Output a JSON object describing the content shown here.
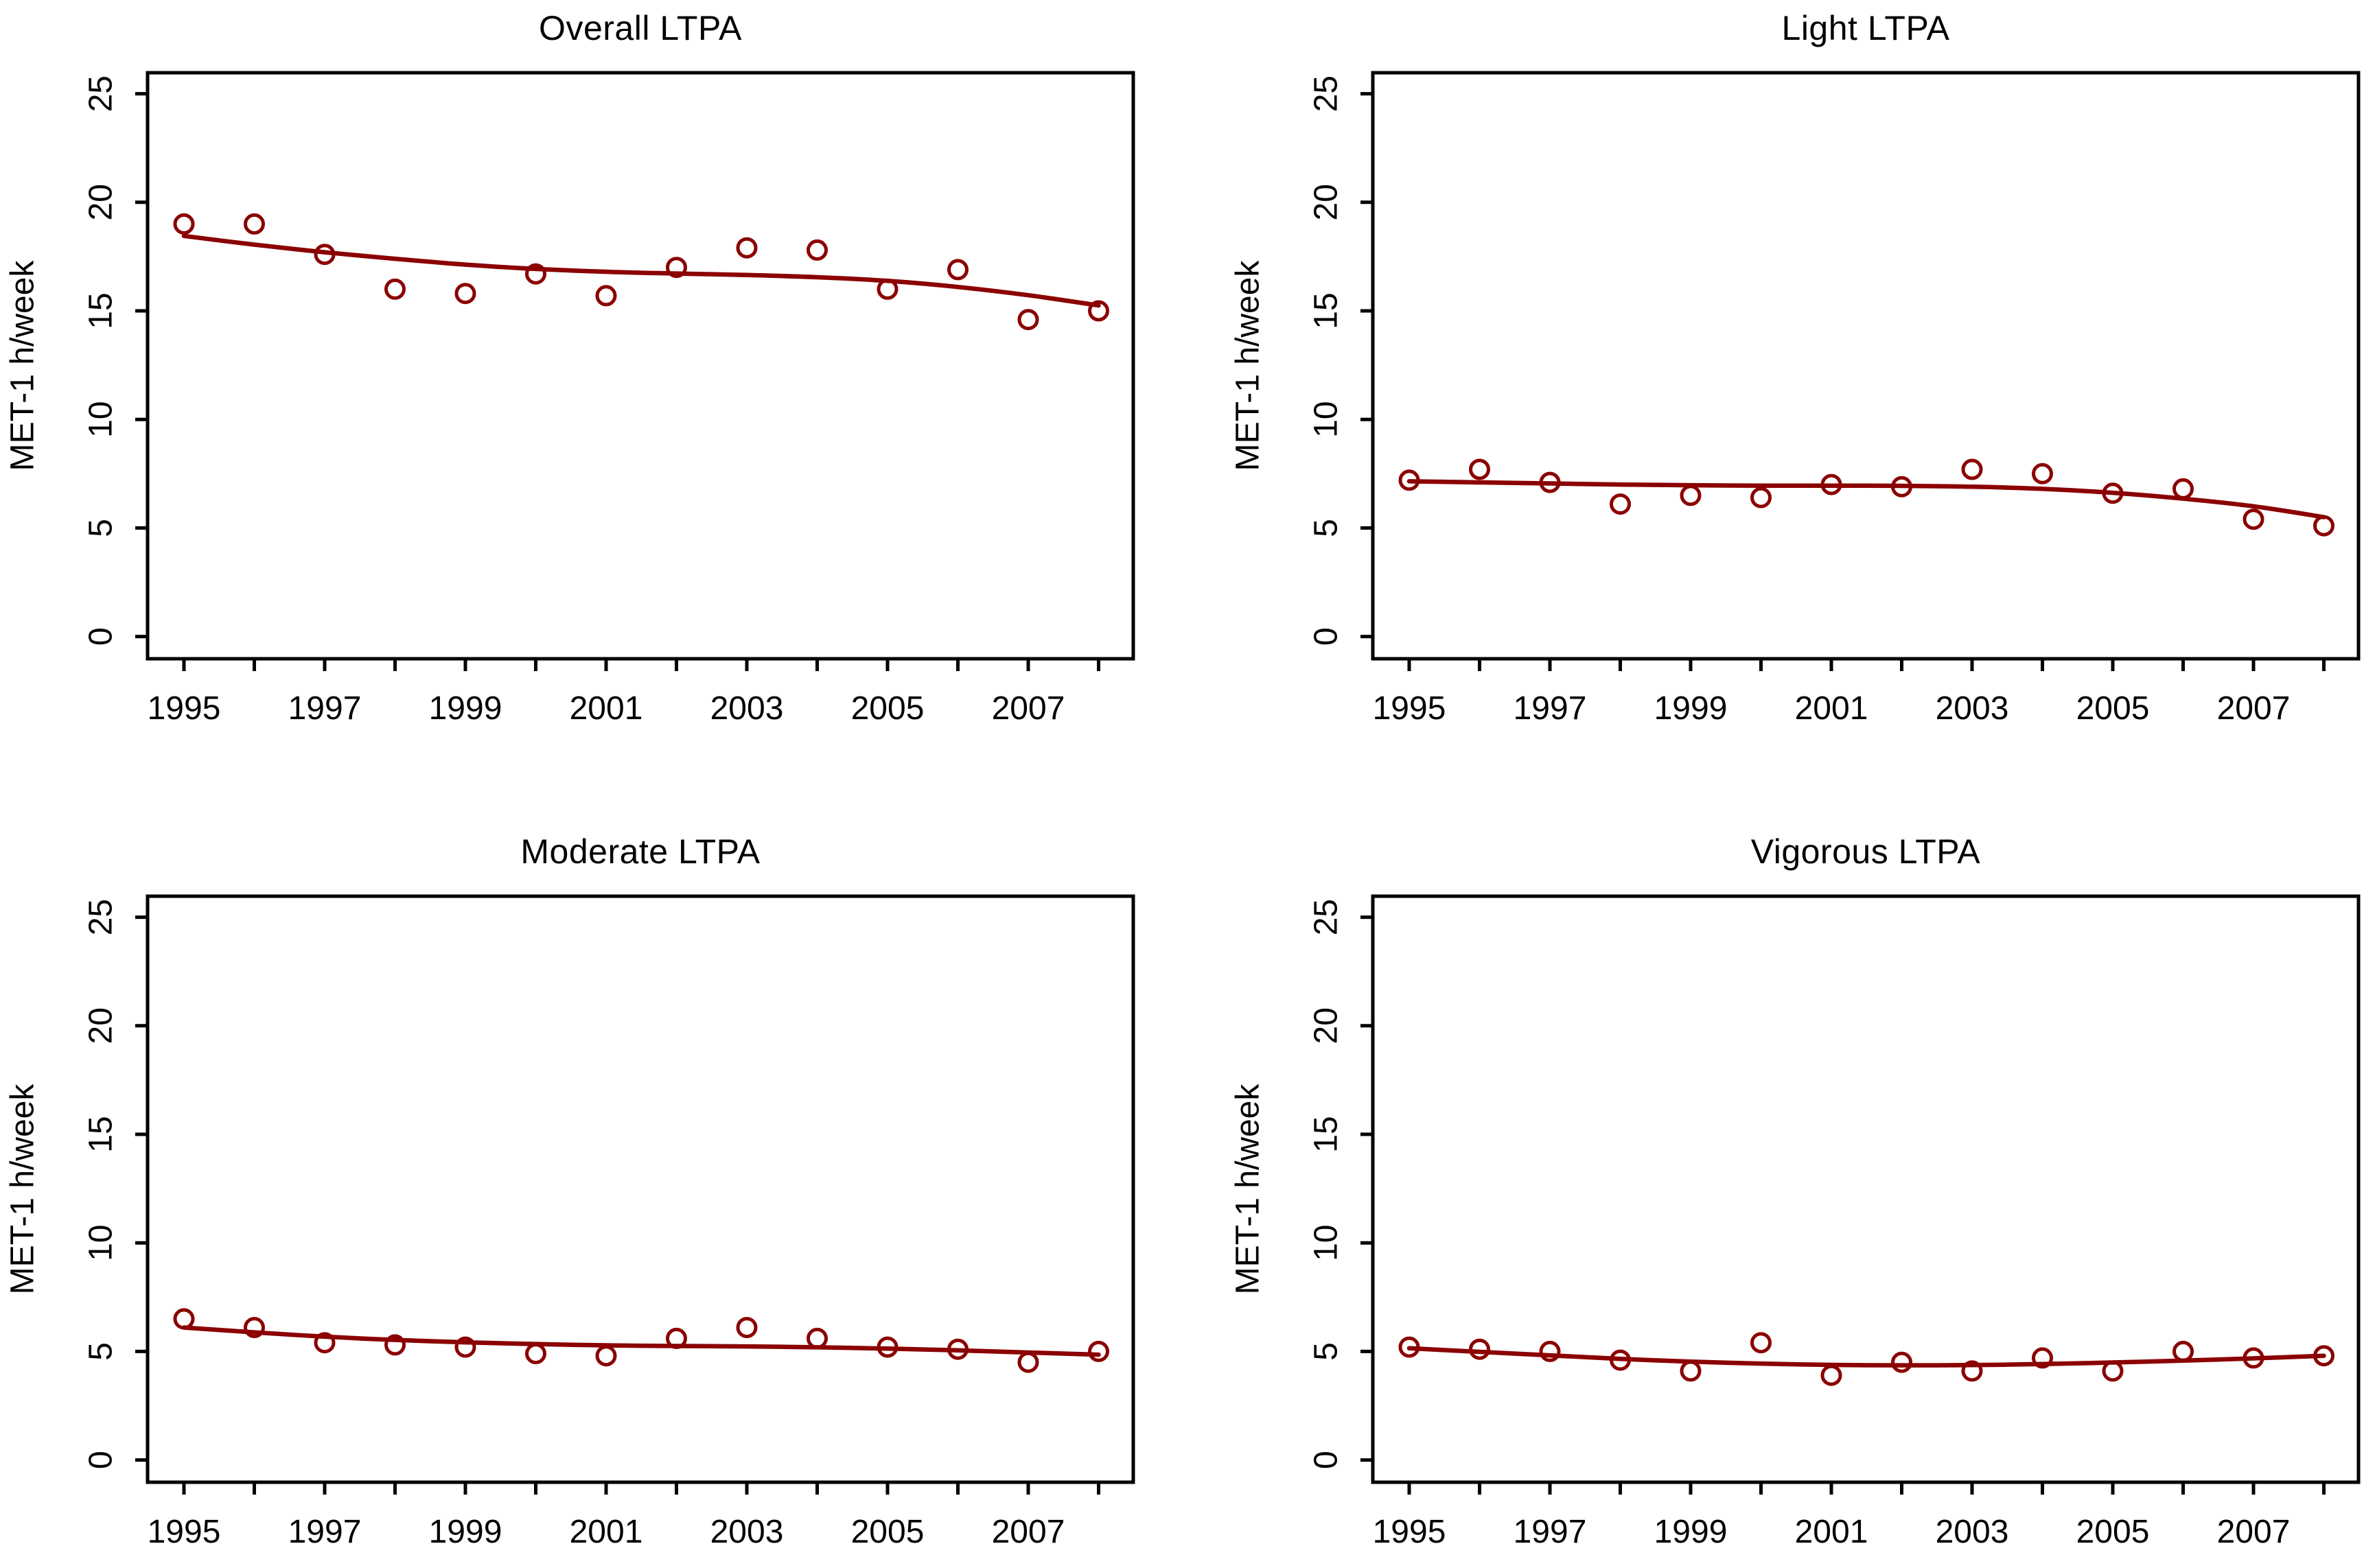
{
  "figure": {
    "background": "#ffffff",
    "axis_color": "#000000",
    "series_color": "#8B0000",
    "shared_ylabel": "MET-1 h/week"
  },
  "chart_data": [
    {
      "type": "scatter",
      "title": "Overall LTPA",
      "xlabel": "",
      "ylabel": "MET-1 h/week",
      "x": [
        1995,
        1996,
        1997,
        1998,
        1999,
        2000,
        2001,
        2002,
        2003,
        2004,
        2005,
        2006,
        2007,
        2008
      ],
      "points": [
        19.0,
        19.0,
        17.6,
        16.0,
        15.8,
        16.7,
        15.7,
        17.0,
        17.9,
        17.8,
        16.0,
        16.9,
        14.6,
        15.0
      ],
      "trend": [
        18.45,
        18.05,
        17.7,
        17.4,
        17.13,
        16.93,
        16.8,
        16.72,
        16.65,
        16.55,
        16.38,
        16.1,
        15.72,
        15.25
      ],
      "ylim": [
        0,
        25
      ],
      "yticks": [
        0,
        5,
        10,
        15,
        20,
        25
      ],
      "xticks_labeled": [
        1995,
        1997,
        1999,
        2001,
        2003,
        2005,
        2007
      ],
      "marker": "open-circle",
      "color": "#8B0000",
      "grid": false,
      "legend": "none"
    },
    {
      "type": "scatter",
      "title": "Light LTPA",
      "xlabel": "",
      "ylabel": "MET-1 h/week",
      "x": [
        1995,
        1996,
        1997,
        1998,
        1999,
        2000,
        2001,
        2002,
        2003,
        2004,
        2005,
        2006,
        2007,
        2008
      ],
      "points": [
        7.2,
        7.7,
        7.1,
        6.1,
        6.5,
        6.4,
        7.0,
        6.9,
        7.7,
        7.5,
        6.6,
        6.8,
        5.4,
        5.1
      ],
      "trend": [
        7.15,
        7.1,
        7.05,
        7.0,
        6.97,
        6.95,
        6.95,
        6.94,
        6.9,
        6.8,
        6.62,
        6.35,
        6.0,
        5.5
      ],
      "ylim": [
        0,
        25
      ],
      "yticks": [
        0,
        5,
        10,
        15,
        20,
        25
      ],
      "xticks_labeled": [
        1995,
        1997,
        1999,
        2001,
        2003,
        2005,
        2007
      ],
      "marker": "open-circle",
      "color": "#8B0000",
      "grid": false,
      "legend": "none"
    },
    {
      "type": "scatter",
      "title": "Moderate LTPA",
      "xlabel": "",
      "ylabel": "MET-1 h/week",
      "x": [
        1995,
        1996,
        1997,
        1998,
        1999,
        2000,
        2001,
        2002,
        2003,
        2004,
        2005,
        2006,
        2007,
        2008
      ],
      "points": [
        6.5,
        6.1,
        5.4,
        5.3,
        5.2,
        4.9,
        4.8,
        5.6,
        6.1,
        5.6,
        5.2,
        5.1,
        4.5,
        5.0
      ],
      "trend": [
        6.1,
        5.88,
        5.68,
        5.53,
        5.42,
        5.34,
        5.28,
        5.25,
        5.23,
        5.19,
        5.13,
        5.05,
        4.95,
        4.85
      ],
      "ylim": [
        0,
        25
      ],
      "yticks": [
        0,
        5,
        10,
        15,
        20,
        25
      ],
      "xticks_labeled": [
        1995,
        1997,
        1999,
        2001,
        2003,
        2005,
        2007
      ],
      "marker": "open-circle",
      "color": "#8B0000",
      "grid": false,
      "legend": "none"
    },
    {
      "type": "scatter",
      "title": "Vigorous LTPA",
      "xlabel": "",
      "ylabel": "MET-1 h/week",
      "x": [
        1995,
        1996,
        1997,
        1998,
        1999,
        2000,
        2001,
        2002,
        2003,
        2004,
        2005,
        2006,
        2007,
        2008
      ],
      "points": [
        5.2,
        5.1,
        5.0,
        4.6,
        4.1,
        5.4,
        3.9,
        4.5,
        4.1,
        4.7,
        4.1,
        5.0,
        4.7,
        4.8
      ],
      "trend": [
        5.15,
        4.98,
        4.82,
        4.66,
        4.53,
        4.44,
        4.38,
        4.36,
        4.37,
        4.42,
        4.49,
        4.58,
        4.68,
        4.8
      ],
      "ylim": [
        0,
        25
      ],
      "yticks": [
        0,
        5,
        10,
        15,
        20,
        25
      ],
      "xticks_labeled": [
        1995,
        1997,
        1999,
        2001,
        2003,
        2005,
        2007
      ],
      "marker": "open-circle",
      "color": "#8B0000",
      "grid": false,
      "legend": "none"
    }
  ]
}
